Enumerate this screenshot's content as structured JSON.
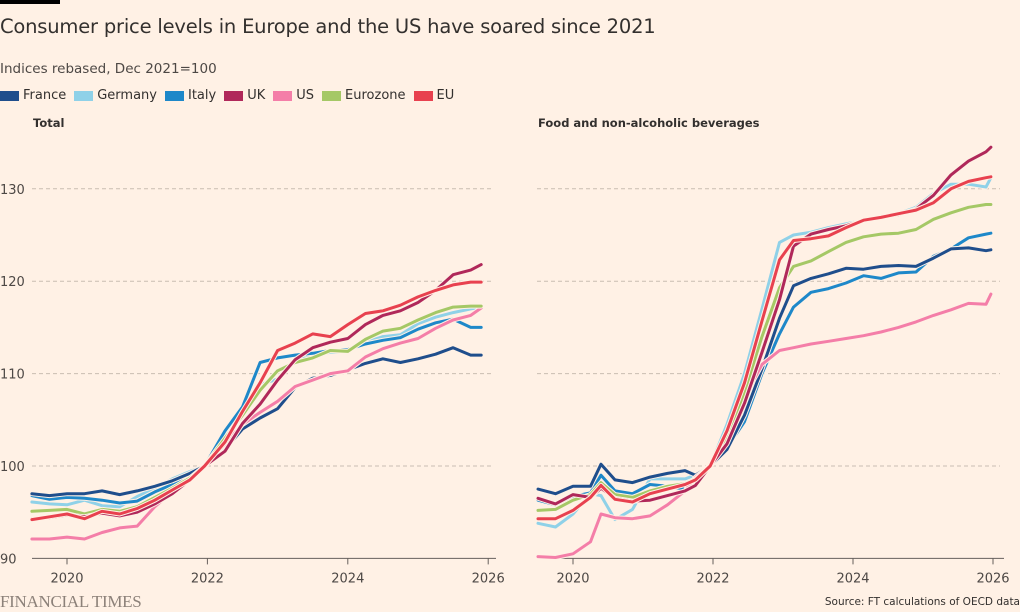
{
  "header": {
    "title": "Consumer price levels in Europe and the US have soared since 2021",
    "subtitle": "Indices rebased, Dec 2021=100"
  },
  "legend": [
    {
      "name": "France",
      "color": "#1f4e8c"
    },
    {
      "name": "Germany",
      "color": "#8fd1e8"
    },
    {
      "name": "Italy",
      "color": "#1e88c9"
    },
    {
      "name": "UK",
      "color": "#b0285a"
    },
    {
      "name": "US",
      "color": "#f47ea8"
    },
    {
      "name": "Eurozone",
      "color": "#a5c866"
    },
    {
      "name": "EU",
      "color": "#e8414f"
    }
  ],
  "footer": {
    "brand": "FINANCIAL TIMES",
    "source": "Source: FT calculations of OECD data"
  },
  "chart_data": [
    {
      "type": "line",
      "title": "Total",
      "xlabel": "",
      "ylabel": "",
      "ylim": [
        90,
        135
      ],
      "xlim": [
        2019.5,
        2026.1
      ],
      "yticks": [
        90,
        100,
        110,
        120,
        130
      ],
      "xticks": [
        2020,
        2022,
        2024,
        2026
      ],
      "x": [
        2019.5,
        2019.75,
        2020.0,
        2020.25,
        2020.5,
        2020.75,
        2021.0,
        2021.25,
        2021.5,
        2021.75,
        2021.96,
        2022.25,
        2022.5,
        2022.75,
        2023.0,
        2023.25,
        2023.5,
        2023.75,
        2024.0,
        2024.25,
        2024.5,
        2024.75,
        2025.0,
        2025.25,
        2025.5,
        2025.75,
        2025.9
      ],
      "series": [
        {
          "name": "France",
          "values": [
            97.0,
            96.8,
            97.0,
            97.0,
            97.3,
            96.9,
            97.3,
            97.8,
            98.4,
            99.2,
            100.0,
            101.8,
            104.0,
            105.2,
            106.2,
            108.5,
            109.5,
            109.8,
            110.4,
            111.1,
            111.6,
            111.2,
            111.6,
            112.1,
            112.8,
            112.0,
            112.0
          ]
        },
        {
          "name": "Germany",
          "values": [
            96.1,
            95.9,
            95.8,
            96.3,
            95.7,
            95.6,
            96.7,
            97.6,
            98.6,
            99.4,
            100.0,
            103.0,
            105.8,
            108.8,
            109.4,
            111.5,
            112.0,
            112.3,
            112.4,
            113.4,
            114.0,
            114.2,
            115.4,
            116.1,
            116.6,
            117.0,
            117.2
          ]
        },
        {
          "name": "Italy",
          "values": [
            96.8,
            96.4,
            96.6,
            96.5,
            96.3,
            96.0,
            96.2,
            97.2,
            98.0,
            98.7,
            100.0,
            103.8,
            106.4,
            111.2,
            111.7,
            112.0,
            112.2,
            112.5,
            112.6,
            113.2,
            113.6,
            113.9,
            114.8,
            115.5,
            115.9,
            115.0,
            115.0
          ]
        },
        {
          "name": "UK",
          "values": [
            94.3,
            94.4,
            94.7,
            94.5,
            94.9,
            94.6,
            95.0,
            95.9,
            97.0,
            98.5,
            100.0,
            101.6,
            104.6,
            106.7,
            109.3,
            111.5,
            112.8,
            113.4,
            113.8,
            115.3,
            116.3,
            116.8,
            117.7,
            119.0,
            120.7,
            121.2,
            121.8
          ]
        },
        {
          "name": "US",
          "values": [
            92.1,
            92.1,
            92.3,
            92.1,
            92.8,
            93.3,
            93.5,
            95.6,
            97.2,
            98.5,
            100.0,
            102.4,
            104.5,
            105.8,
            107.0,
            108.6,
            109.3,
            110.0,
            110.3,
            111.8,
            112.7,
            113.3,
            113.8,
            114.9,
            115.8,
            116.3,
            117.1
          ]
        },
        {
          "name": "Eurozone",
          "values": [
            95.1,
            95.2,
            95.3,
            94.8,
            95.3,
            95.1,
            95.6,
            96.6,
            97.6,
            98.7,
            100.0,
            103.0,
            105.5,
            108.2,
            110.3,
            111.2,
            111.7,
            112.5,
            112.4,
            113.7,
            114.6,
            114.9,
            115.8,
            116.6,
            117.2,
            117.3,
            117.3
          ]
        },
        {
          "name": "EU",
          "values": [
            94.2,
            94.5,
            94.8,
            94.3,
            95.1,
            94.8,
            95.4,
            96.3,
            97.4,
            98.5,
            100.0,
            102.6,
            105.9,
            109.0,
            112.5,
            113.3,
            114.3,
            114.0,
            115.3,
            116.5,
            116.8,
            117.4,
            118.3,
            119.0,
            119.6,
            119.9,
            119.9
          ]
        }
      ]
    },
    {
      "type": "line",
      "title": "Food and non-alcoholic beverages",
      "xlabel": "",
      "ylabel": "",
      "ylim": [
        90,
        135
      ],
      "xlim": [
        2019.5,
        2026.1
      ],
      "yticks": [
        90,
        100,
        110,
        120,
        130
      ],
      "xticks": [
        2020,
        2022,
        2024,
        2026
      ],
      "x": [
        2019.5,
        2019.75,
        2020.0,
        2020.25,
        2020.4,
        2020.6,
        2020.85,
        2021.1,
        2021.35,
        2021.6,
        2021.75,
        2021.96,
        2022.2,
        2022.45,
        2022.7,
        2022.95,
        2023.15,
        2023.4,
        2023.65,
        2023.9,
        2024.15,
        2024.4,
        2024.65,
        2024.9,
        2025.15,
        2025.4,
        2025.65,
        2025.9,
        2025.97
      ],
      "series": [
        {
          "name": "France",
          "values": [
            97.5,
            97.0,
            97.8,
            97.8,
            100.2,
            98.5,
            98.2,
            98.8,
            99.2,
            99.5,
            99.0,
            100.0,
            101.8,
            105.5,
            110.5,
            116.0,
            119.5,
            120.3,
            120.8,
            121.4,
            121.3,
            121.6,
            121.7,
            121.6,
            122.5,
            123.5,
            123.6,
            123.3,
            123.4
          ]
        },
        {
          "name": "Germany",
          "values": [
            93.8,
            93.4,
            94.8,
            97.0,
            96.8,
            94.2,
            95.3,
            98.6,
            98.6,
            98.6,
            99.0,
            100.0,
            104.5,
            110.0,
            117.0,
            124.2,
            125.0,
            125.3,
            125.8,
            126.2,
            126.6,
            127.0,
            127.3,
            128.0,
            129.5,
            130.5,
            130.5,
            130.2,
            131.2
          ]
        },
        {
          "name": "Italy",
          "values": [
            96.3,
            95.8,
            96.7,
            97.1,
            99.0,
            97.3,
            97.0,
            98.0,
            97.8,
            97.5,
            98.2,
            100.0,
            102.0,
            104.8,
            110.0,
            114.3,
            117.2,
            118.8,
            119.2,
            119.8,
            120.6,
            120.3,
            120.9,
            121.0,
            122.7,
            123.5,
            124.7,
            125.1,
            125.2
          ]
        },
        {
          "name": "UK",
          "values": [
            96.5,
            95.9,
            96.9,
            96.6,
            97.6,
            96.5,
            96.2,
            96.3,
            96.8,
            97.3,
            97.9,
            100.0,
            102.4,
            106.8,
            112.3,
            118.0,
            123.8,
            125.1,
            125.6,
            126.0,
            126.6,
            126.9,
            127.2,
            127.8,
            129.3,
            131.5,
            133.0,
            134.0,
            134.5
          ]
        },
        {
          "name": "US",
          "values": [
            90.2,
            90.1,
            90.5,
            91.8,
            94.8,
            94.4,
            94.3,
            94.6,
            95.8,
            97.3,
            98.8,
            100.0,
            103.3,
            107.5,
            111.0,
            112.5,
            112.8,
            113.2,
            113.5,
            113.8,
            114.1,
            114.5,
            115.0,
            115.6,
            116.3,
            116.9,
            117.6,
            117.5,
            118.6
          ]
        },
        {
          "name": "Eurozone",
          "values": [
            95.2,
            95.3,
            96.3,
            96.9,
            98.2,
            96.9,
            96.6,
            97.3,
            97.8,
            98.1,
            98.6,
            100.0,
            103.2,
            108.0,
            114.0,
            119.3,
            121.6,
            122.2,
            123.2,
            124.2,
            124.8,
            125.1,
            125.2,
            125.6,
            126.7,
            127.4,
            128.0,
            128.3,
            128.3
          ]
        },
        {
          "name": "EU",
          "values": [
            94.3,
            94.3,
            95.2,
            96.6,
            97.9,
            96.4,
            96.1,
            97.0,
            97.5,
            98.0,
            98.5,
            100.0,
            103.8,
            109.0,
            115.7,
            122.3,
            124.4,
            124.6,
            124.9,
            125.8,
            126.6,
            126.9,
            127.3,
            127.7,
            128.5,
            130.0,
            130.8,
            131.2,
            131.3
          ]
        }
      ]
    }
  ]
}
